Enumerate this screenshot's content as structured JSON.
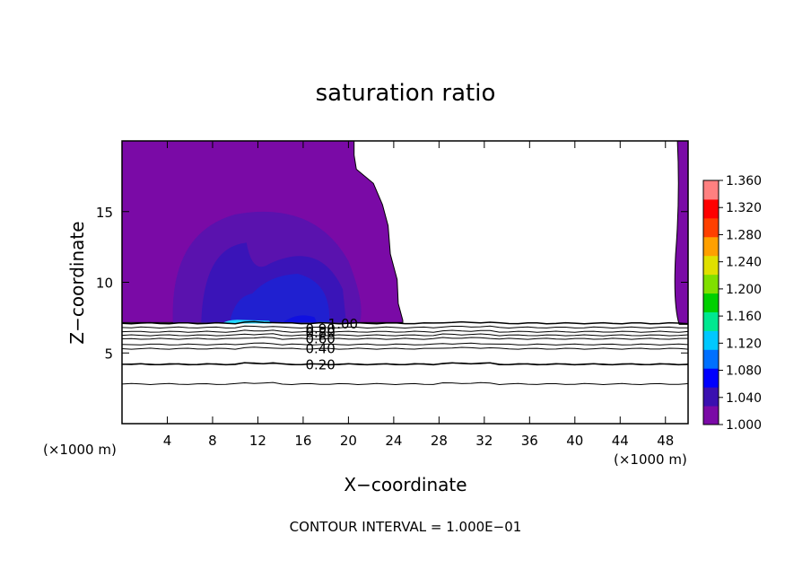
{
  "chart_data": {
    "type": "contour",
    "title": "saturation ratio",
    "xlabel": "X−coordinate",
    "ylabel": "Z−coordinate",
    "x_unit": "(×1000 m)",
    "y_unit": "(×1000 m)",
    "xlim": [
      0,
      50
    ],
    "ylim": [
      0,
      20
    ],
    "x_ticks": [
      {
        "value": 4,
        "label": "4"
      },
      {
        "value": 8,
        "label": "8"
      },
      {
        "value": 12,
        "label": "12"
      },
      {
        "value": 16,
        "label": "16"
      },
      {
        "value": 20,
        "label": "20"
      },
      {
        "value": 24,
        "label": "24"
      },
      {
        "value": 28,
        "label": "28"
      },
      {
        "value": 32,
        "label": "32"
      },
      {
        "value": 36,
        "label": "36"
      },
      {
        "value": 40,
        "label": "40"
      },
      {
        "value": 44,
        "label": "44"
      },
      {
        "value": 48,
        "label": "48"
      }
    ],
    "y_ticks": [
      {
        "value": 5,
        "label": "5"
      },
      {
        "value": 10,
        "label": "10"
      },
      {
        "value": 15,
        "label": "15"
      }
    ],
    "colorbar": {
      "min": 1.0,
      "max": 1.36,
      "labels": [
        "1.360",
        "1.320",
        "1.280",
        "1.240",
        "1.200",
        "1.160",
        "1.120",
        "1.080",
        "1.040",
        "1.000"
      ],
      "colors": [
        "#7a0aa6",
        "#3a10b0",
        "#0000ff",
        "#0070ff",
        "#00c8ff",
        "#00e890",
        "#00d000",
        "#80e000",
        "#e0e000",
        "#ffa000",
        "#ff4000",
        "#ff0000",
        "#ff8080"
      ]
    },
    "contour_interval": 0.1,
    "contour_levels": [
      {
        "value": 1.0,
        "label": "1.00",
        "z": 7.1
      },
      {
        "value": 0.9,
        "label": "0.90",
        "z": 6.8
      },
      {
        "value": 0.8,
        "label": "0.80",
        "z": 6.5
      },
      {
        "value": 0.7,
        "label": "",
        "z": 6.25
      },
      {
        "value": 0.6,
        "label": "0.60",
        "z": 6.0
      },
      {
        "value": 0.5,
        "label": "",
        "z": 5.6
      },
      {
        "value": 0.4,
        "label": "0.40",
        "z": 5.3
      },
      {
        "value": 0.3,
        "label": "",
        "z": 4.2
      },
      {
        "value": 0.2,
        "label": "0.20",
        "z": 4.2
      },
      {
        "value": 0.1,
        "label": "",
        "z": 2.8
      }
    ],
    "supersaturated_region": {
      "base_z": 7.15,
      "top_z": 20,
      "right_edge_x": [
        [
          20.5,
          20
        ],
        [
          20.5,
          19
        ],
        [
          20.7,
          18
        ],
        [
          22.2,
          17
        ],
        [
          23.0,
          15.5
        ],
        [
          23.5,
          14.0
        ],
        [
          23.7,
          12
        ],
        [
          24.3,
          10.2
        ],
        [
          24.4,
          8.5
        ],
        [
          24.8,
          7.3
        ]
      ],
      "right_strip_x_start": 48.9,
      "colors": {
        "base": "#7a0aa6",
        "level2": "#5a12ae",
        "level3": "#3a14b8",
        "level4": "#2020d0",
        "peak": "#20d8ff"
      }
    },
    "footer": "CONTOUR INTERVAL = 1.000E−01"
  }
}
